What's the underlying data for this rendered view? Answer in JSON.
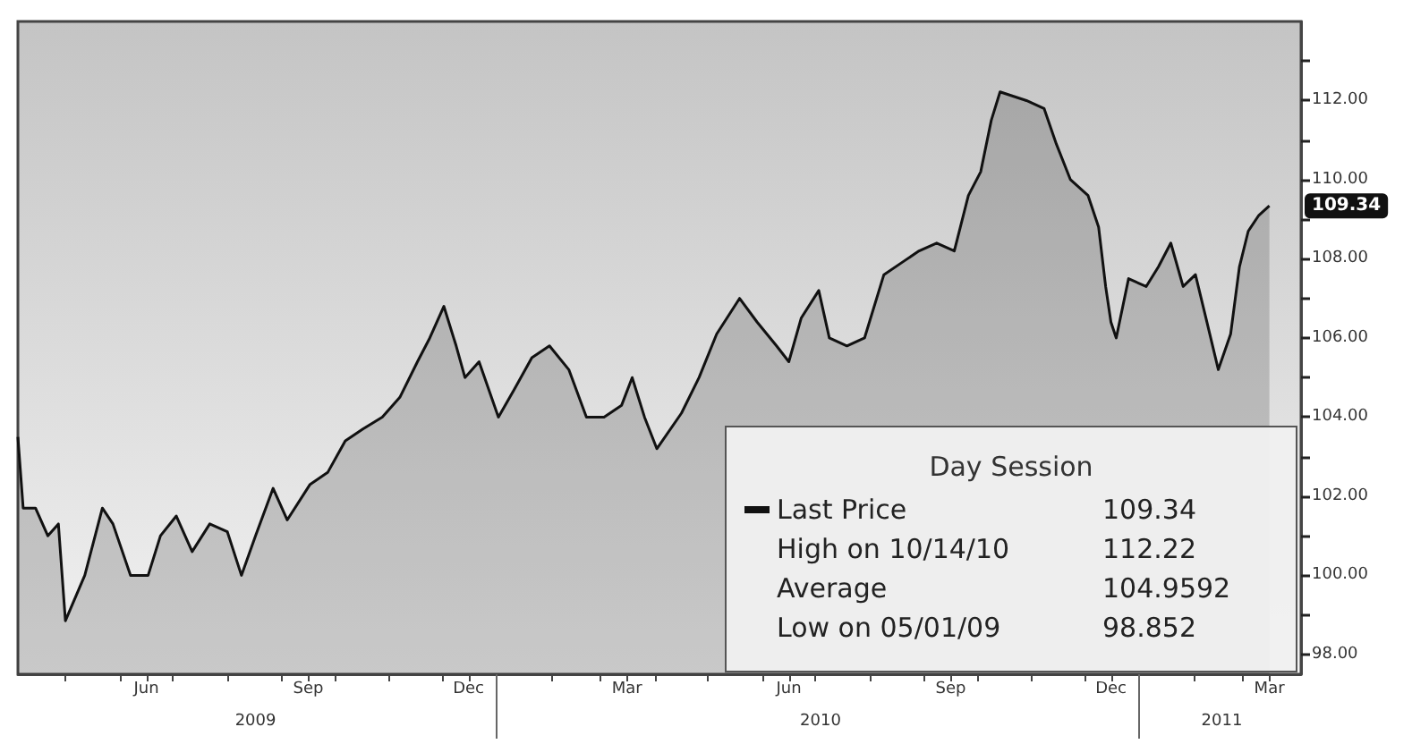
{
  "chart_data": {
    "type": "area",
    "legend_title": "Day Session",
    "legend": "bottom right",
    "xlim": [
      "2009-04-04",
      "2011-04-03"
    ],
    "xticks": [
      {
        "value": "2009-05-01",
        "label": null
      },
      {
        "value": "2009-06-01",
        "label": null
      },
      {
        "value": "2009-06-16",
        "label": "Jun"
      },
      {
        "value": "2009-07-01",
        "label": null
      },
      {
        "value": "2009-08-01",
        "label": null
      },
      {
        "value": "2009-09-01",
        "label": null
      },
      {
        "value": "2009-09-16",
        "label": "Sep"
      },
      {
        "value": "2009-10-01",
        "label": null
      },
      {
        "value": "2009-11-01",
        "label": null
      },
      {
        "value": "2009-12-01",
        "label": null
      },
      {
        "value": "2009-12-16",
        "label": "Dec"
      },
      {
        "value": "2010-01-01",
        "label": null
      },
      {
        "value": "2010-02-01",
        "label": null
      },
      {
        "value": "2010-03-01",
        "label": null
      },
      {
        "value": "2010-03-16",
        "label": "Mar"
      },
      {
        "value": "2010-04-01",
        "label": null
      },
      {
        "value": "2010-05-01",
        "label": null
      },
      {
        "value": "2010-06-01",
        "label": null
      },
      {
        "value": "2010-06-16",
        "label": "Jun"
      },
      {
        "value": "2010-07-01",
        "label": null
      },
      {
        "value": "2010-08-01",
        "label": null
      },
      {
        "value": "2010-09-01",
        "label": null
      },
      {
        "value": "2010-09-16",
        "label": "Sep"
      },
      {
        "value": "2010-10-01",
        "label": null
      },
      {
        "value": "2010-11-01",
        "label": null
      },
      {
        "value": "2010-12-01",
        "label": null
      },
      {
        "value": "2010-12-16",
        "label": "Dec"
      },
      {
        "value": "2011-01-01",
        "label": null
      },
      {
        "value": "2011-02-01",
        "label": null
      },
      {
        "value": "2011-03-01",
        "label": null
      },
      {
        "value": "2011-03-16",
        "label": "Mar"
      }
    ],
    "x2lim": [
      "2009-04-04",
      "2011-04-03"
    ],
    "x2ticks": [
      {
        "value": "2009-08-17",
        "label": "2009"
      },
      {
        "value": "2010-01-01",
        "label": null
      },
      {
        "value": "2010-07-04",
        "label": "2010"
      },
      {
        "value": "2011-01-01",
        "label": null
      },
      {
        "value": "2011-02-17",
        "label": "2011"
      }
    ],
    "ylim": [
      97.5,
      114
    ],
    "yticks": [
      {
        "value": 98,
        "label": "98.00"
      },
      {
        "value": 99,
        "label": null
      },
      {
        "value": 100,
        "label": "100.00"
      },
      {
        "value": 101,
        "label": null
      },
      {
        "value": 102,
        "label": "102.00"
      },
      {
        "value": 103,
        "label": null
      },
      {
        "value": 104,
        "label": "104.00"
      },
      {
        "value": 105,
        "label": null
      },
      {
        "value": 106,
        "label": "106.00"
      },
      {
        "value": 107,
        "label": null
      },
      {
        "value": 108,
        "label": "108.00"
      },
      {
        "value": 109,
        "label": null
      },
      {
        "value": 110,
        "label": "110.00"
      },
      {
        "value": 111,
        "label": null
      },
      {
        "value": 112,
        "label": "112.00"
      },
      {
        "value": 113,
        "label": null
      }
    ],
    "x": [
      "2009-04-04",
      "2009-04-07",
      "2009-04-14",
      "2009-04-21",
      "2009-04-27",
      "2009-05-01",
      "2009-05-12",
      "2009-05-22",
      "2009-05-28",
      "2009-06-07",
      "2009-06-17",
      "2009-06-24",
      "2009-07-03",
      "2009-07-12",
      "2009-07-22",
      "2009-08-01",
      "2009-08-09",
      "2009-08-17",
      "2009-08-27",
      "2009-09-04",
      "2009-09-17",
      "2009-09-27",
      "2009-10-07",
      "2009-10-17",
      "2009-10-28",
      "2009-11-07",
      "2009-11-17",
      "2009-11-24",
      "2009-12-02",
      "2009-12-09",
      "2009-12-14",
      "2009-12-22",
      "2010-01-02",
      "2010-01-11",
      "2010-01-21",
      "2010-01-31",
      "2010-02-11",
      "2010-02-21",
      "2010-03-03",
      "2010-03-13",
      "2010-03-19",
      "2010-03-26",
      "2010-04-02",
      "2010-04-16",
      "2010-04-26",
      "2010-05-06",
      "2010-05-19",
      "2010-05-29",
      "2010-06-09",
      "2010-06-16",
      "2010-06-23",
      "2010-07-03",
      "2010-07-09",
      "2010-07-19",
      "2010-07-29",
      "2010-08-09",
      "2010-08-19",
      "2010-08-29",
      "2010-09-08",
      "2010-09-18",
      "2010-09-26",
      "2010-10-03",
      "2010-10-09",
      "2010-10-14",
      "2010-10-29",
      "2010-11-08",
      "2010-11-15",
      "2010-11-23",
      "2010-12-03",
      "2010-12-09",
      "2010-12-13",
      "2010-12-16",
      "2010-12-19",
      "2010-12-26",
      "2011-01-05",
      "2011-01-12",
      "2011-01-19",
      "2011-01-26",
      "2011-02-02",
      "2011-02-08",
      "2011-02-15",
      "2011-02-22",
      "2011-02-27",
      "2011-03-04",
      "2011-03-10",
      "2011-03-16"
    ],
    "series": [
      {
        "name": "Last Price",
        "color": "#111111",
        "values": [
          103.5,
          101.7,
          101.7,
          101.0,
          101.3,
          98.852,
          100.0,
          101.7,
          101.3,
          100.0,
          100.0,
          101.0,
          101.5,
          100.6,
          101.3,
          101.1,
          100.0,
          101.0,
          102.2,
          101.4,
          102.3,
          102.6,
          103.4,
          103.7,
          104.0,
          104.5,
          105.4,
          106.0,
          106.8,
          105.8,
          105.0,
          105.4,
          104.0,
          104.7,
          105.5,
          105.8,
          105.2,
          104.0,
          104.0,
          104.3,
          105.0,
          104.0,
          103.2,
          104.1,
          105.0,
          106.1,
          107.0,
          106.4,
          105.8,
          105.4,
          106.5,
          107.2,
          106.0,
          105.8,
          106.0,
          107.6,
          107.9,
          108.2,
          108.4,
          108.2,
          109.6,
          110.2,
          111.5,
          112.22,
          112.0,
          111.8,
          110.9,
          110.0,
          109.6,
          108.8,
          107.3,
          106.4,
          106.0,
          107.5,
          107.3,
          107.8,
          108.4,
          107.3,
          107.6,
          106.5,
          105.2,
          106.1,
          107.8,
          108.7,
          109.1,
          109.34
        ]
      }
    ],
    "annotations": [
      "109.34",
      "High on 10/14/10",
      "112.22",
      "Average",
      "104.9592",
      "Low on 05/01/09",
      "98.852",
      {
        "text": "109.34",
        "x": "2011-03-16",
        "y": 109.34
      }
    ]
  }
}
